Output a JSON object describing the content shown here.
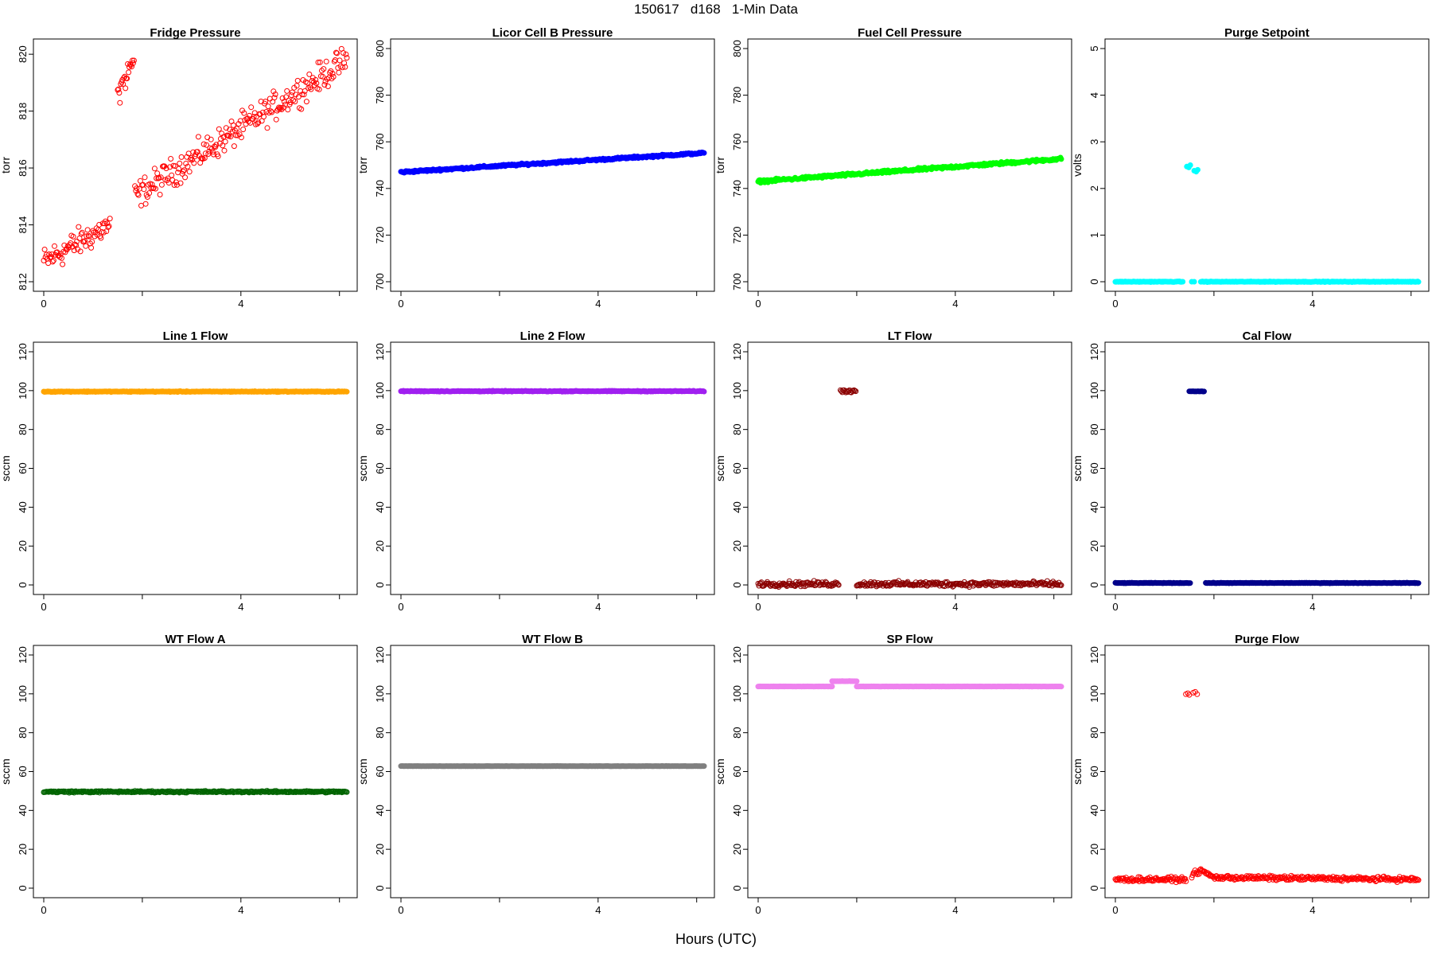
{
  "title": "150617   d168   1-Min Data",
  "xlabel": "Hours (UTC)",
  "chart_data": [
    {
      "type": "scatter",
      "title": "Fridge Pressure",
      "ylabel": "torr",
      "color": "#ff0000",
      "fill": false,
      "xlim": [
        0,
        6.15
      ],
      "ylim": [
        812,
        820.2
      ],
      "xticks": [
        "0",
        "4"
      ],
      "yticks": [
        "812",
        "814",
        "816",
        "818",
        "820"
      ],
      "series": {
        "kind": "noisy_trend",
        "x0": 0,
        "x1": 6.15,
        "n": 340,
        "gaps": [
          [
            1.35,
            1.85
          ]
        ],
        "trend": [
          [
            0,
            812.7
          ],
          [
            1.35,
            814.0
          ],
          [
            1.85,
            815.0
          ],
          [
            6.15,
            819.8
          ]
        ],
        "noise": 0.35
      },
      "extra": {
        "kind": "noisy_trend",
        "x0": 1.5,
        "x1": 1.83,
        "n": 22,
        "trend": [
          [
            1.5,
            818.6
          ],
          [
            1.83,
            819.8
          ]
        ],
        "noise": 0.3
      }
    },
    {
      "type": "scatter",
      "title": "Licor Cell B Pressure",
      "ylabel": "torr",
      "color": "#0000ff",
      "fill": true,
      "xlim": [
        0,
        6.15
      ],
      "ylim": [
        700,
        800
      ],
      "xticks": [
        "0",
        "4"
      ],
      "yticks": [
        "700",
        "720",
        "740",
        "760",
        "780",
        "800"
      ],
      "series": {
        "kind": "noisy_trend",
        "x0": 0,
        "x1": 6.15,
        "n": 370,
        "trend": [
          [
            0,
            747
          ],
          [
            6.15,
            755.2
          ]
        ],
        "noise": 0.3
      }
    },
    {
      "type": "scatter",
      "title": "Fuel Cell Pressure",
      "ylabel": "torr",
      "color": "#00ff00",
      "fill": true,
      "xlim": [
        0,
        6.15
      ],
      "ylim": [
        700,
        800
      ],
      "xticks": [
        "0",
        "4"
      ],
      "yticks": [
        "700",
        "720",
        "740",
        "760",
        "780",
        "800"
      ],
      "series": {
        "kind": "noisy_trend",
        "x0": 0,
        "x1": 6.15,
        "n": 370,
        "trend": [
          [
            0,
            743
          ],
          [
            6.15,
            752.7
          ]
        ],
        "noise": 0.4
      }
    },
    {
      "type": "scatter",
      "title": "Purge Setpoint",
      "ylabel": "volts",
      "color": "#00ffff",
      "fill": true,
      "xlim": [
        0,
        6.15
      ],
      "ylim": [
        0,
        5
      ],
      "xticks": [
        "0",
        "4"
      ],
      "yticks": [
        "0",
        "1",
        "2",
        "3",
        "4",
        "5"
      ],
      "series": {
        "kind": "noisy_trend",
        "x0": 0,
        "x1": 6.15,
        "n": 370,
        "gaps": [
          [
            1.38,
            1.72
          ]
        ],
        "trend": [
          [
            0,
            0
          ],
          [
            6.15,
            0
          ]
        ],
        "noise": 0.005
      },
      "extra": {
        "kind": "points",
        "pts": [
          [
            1.45,
            2.47
          ],
          [
            1.49,
            2.45
          ],
          [
            1.52,
            2.5
          ],
          [
            1.6,
            2.38
          ],
          [
            1.64,
            2.36
          ],
          [
            1.67,
            2.4
          ],
          [
            1.55,
            0
          ],
          [
            1.6,
            0
          ]
        ]
      }
    },
    {
      "type": "scatter",
      "title": "Line 1 Flow",
      "ylabel": "sccm",
      "color": "#ffa500",
      "fill": true,
      "xlim": [
        0,
        6.15
      ],
      "ylim": [
        0,
        120
      ],
      "xticks": [
        "0",
        "4"
      ],
      "yticks": [
        "0",
        "20",
        "40",
        "60",
        "80",
        "100",
        "120"
      ],
      "series": {
        "kind": "noisy_trend",
        "x0": 0,
        "x1": 6.15,
        "n": 370,
        "trend": [
          [
            0,
            99.5
          ],
          [
            6.15,
            99.5
          ]
        ],
        "noise": 0.15
      }
    },
    {
      "type": "scatter",
      "title": "Line 2 Flow",
      "ylabel": "sccm",
      "color": "#a020f0",
      "fill": true,
      "xlim": [
        0,
        6.15
      ],
      "ylim": [
        0,
        120
      ],
      "xticks": [
        "0",
        "4"
      ],
      "yticks": [
        "0",
        "20",
        "40",
        "60",
        "80",
        "100",
        "120"
      ],
      "series": {
        "kind": "noisy_trend",
        "x0": 0,
        "x1": 6.15,
        "n": 370,
        "trend": [
          [
            0,
            99.7
          ],
          [
            6.15,
            99.7
          ]
        ],
        "noise": 0.15
      }
    },
    {
      "type": "scatter",
      "title": "LT Flow",
      "ylabel": "sccm",
      "color": "#8b0000",
      "fill": false,
      "xlim": [
        0,
        6.15
      ],
      "ylim": [
        0,
        120
      ],
      "xticks": [
        "0",
        "4"
      ],
      "yticks": [
        "0",
        "20",
        "40",
        "60",
        "80",
        "100",
        "120"
      ],
      "series": {
        "kind": "noisy_trend",
        "x0": 0,
        "x1": 6.15,
        "n": 370,
        "gaps": [
          [
            1.65,
            2.0
          ]
        ],
        "trend": [
          [
            0,
            0.5
          ],
          [
            6.15,
            0.5
          ]
        ],
        "noise": 0.9
      },
      "extra": {
        "kind": "noisy_trend",
        "x0": 1.67,
        "x1": 1.98,
        "n": 18,
        "trend": [
          [
            1.67,
            99.6
          ],
          [
            1.98,
            99.6
          ]
        ],
        "noise": 0.7
      }
    },
    {
      "type": "scatter",
      "title": "Cal Flow",
      "ylabel": "sccm",
      "color": "#00008b",
      "fill": true,
      "xlim": [
        0,
        6.15
      ],
      "ylim": [
        0,
        120
      ],
      "xticks": [
        "0",
        "4"
      ],
      "yticks": [
        "0",
        "20",
        "40",
        "60",
        "80",
        "100",
        "120"
      ],
      "series": {
        "kind": "noisy_trend",
        "x0": 0,
        "x1": 6.15,
        "n": 370,
        "gaps": [
          [
            1.52,
            1.83
          ]
        ],
        "trend": [
          [
            0,
            1.0
          ],
          [
            6.15,
            1.0
          ]
        ],
        "noise": 0.1
      },
      "extra": {
        "kind": "noisy_trend",
        "x0": 1.5,
        "x1": 1.8,
        "n": 16,
        "trend": [
          [
            1.5,
            99.6
          ],
          [
            1.8,
            99.6
          ]
        ],
        "noise": 0.1
      }
    },
    {
      "type": "scatter",
      "title": "WT Flow A",
      "ylabel": "sccm",
      "color": "#006400",
      "fill": false,
      "xlim": [
        0,
        6.15
      ],
      "ylim": [
        0,
        120
      ],
      "xticks": [
        "0",
        "4"
      ],
      "yticks": [
        "0",
        "20",
        "40",
        "60",
        "80",
        "100",
        "120"
      ],
      "series": {
        "kind": "noisy_trend",
        "x0": 0,
        "x1": 6.15,
        "n": 370,
        "trend": [
          [
            0,
            49.6
          ],
          [
            6.15,
            49.6
          ]
        ],
        "noise": 0.3
      }
    },
    {
      "type": "scatter",
      "title": "WT Flow B",
      "ylabel": "sccm",
      "color": "#808080",
      "fill": true,
      "xlim": [
        0,
        6.15
      ],
      "ylim": [
        0,
        120
      ],
      "xticks": [
        "0",
        "4"
      ],
      "yticks": [
        "0",
        "20",
        "40",
        "60",
        "80",
        "100",
        "120"
      ],
      "series": {
        "kind": "noisy_trend",
        "x0": 0,
        "x1": 6.15,
        "n": 370,
        "trend": [
          [
            0,
            62.8
          ],
          [
            6.15,
            62.8
          ]
        ],
        "noise": 0.05
      }
    },
    {
      "type": "scatter",
      "title": "SP Flow",
      "ylabel": "sccm",
      "color": "#ee82ee",
      "fill": true,
      "xlim": [
        0,
        6.15
      ],
      "ylim": [
        0,
        120
      ],
      "xticks": [
        "0",
        "4"
      ],
      "yticks": [
        "0",
        "20",
        "40",
        "60",
        "80",
        "100",
        "120"
      ],
      "series": {
        "kind": "noisy_trend",
        "x0": 0,
        "x1": 6.15,
        "n": 370,
        "gaps": [
          [
            1.5,
            2.0
          ]
        ],
        "trend": [
          [
            0,
            103.8
          ],
          [
            6.15,
            103.8
          ]
        ],
        "noise": 0.05
      },
      "extra": {
        "kind": "noisy_trend",
        "x0": 1.5,
        "x1": 2.0,
        "n": 30,
        "trend": [
          [
            1.5,
            106.5
          ],
          [
            2.0,
            106.5
          ]
        ],
        "noise": 0.05
      }
    },
    {
      "type": "scatter",
      "title": "Purge Flow",
      "ylabel": "sccm",
      "color": "#ff0000",
      "fill": false,
      "xlim": [
        0,
        6.15
      ],
      "ylim": [
        0,
        120
      ],
      "xticks": [
        "0",
        "4"
      ],
      "yticks": [
        "0",
        "20",
        "40",
        "60",
        "80",
        "100",
        "120"
      ],
      "series": {
        "kind": "noisy_trend",
        "x0": 0,
        "x1": 6.15,
        "n": 370,
        "gaps": [
          [
            1.45,
            1.55
          ]
        ],
        "trend": [
          [
            0,
            4.5
          ],
          [
            1.45,
            4.5
          ],
          [
            1.6,
            7.5
          ],
          [
            1.75,
            9.0
          ],
          [
            2.0,
            5.5
          ],
          [
            6.15,
            4.5
          ]
        ],
        "noise": 0.8
      },
      "extra": {
        "kind": "points",
        "pts": [
          [
            1.43,
            99.8
          ],
          [
            1.47,
            100.3
          ],
          [
            1.5,
            99.5
          ],
          [
            1.58,
            100.6
          ],
          [
            1.62,
            101.0
          ],
          [
            1.66,
            99.8
          ]
        ]
      }
    }
  ]
}
